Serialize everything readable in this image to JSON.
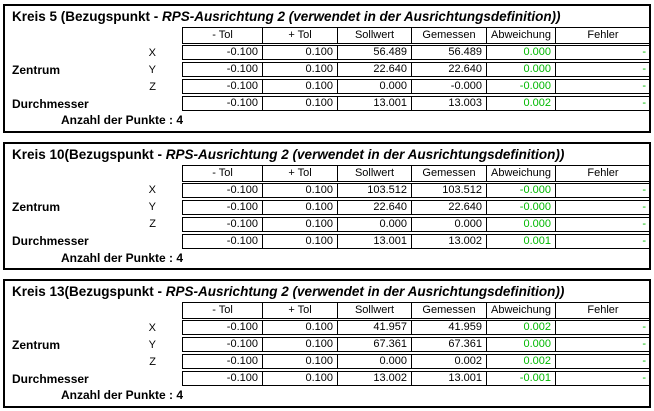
{
  "colors": {
    "deviation_green": "#00b800",
    "border": "#000000",
    "text": "#000000",
    "background": "#ffffff"
  },
  "table": {
    "headers": [
      "- Tol",
      "+ Tol",
      "Sollwert",
      "Gemessen",
      "Abweichung",
      "Fehler"
    ]
  },
  "labels": {
    "center": "Zentrum",
    "diameter": "Durchmesser"
  },
  "blocks": [
    {
      "name": "Kreis 5 ",
      "title_bold": "(Bezugspunkt - ",
      "title_italic": "RPS-Ausrichtung 2 (verwendet in der Ausrichtungsdefinition))",
      "points_text": "Anzahl der Punkte : 4",
      "rows": [
        {
          "axis": "X",
          "minus_tol": "-0.100",
          "plus_tol": "0.100",
          "nominal": "56.489",
          "measured": "56.489",
          "deviation": "0.000",
          "error": "-"
        },
        {
          "axis": "Y",
          "minus_tol": "-0.100",
          "plus_tol": "0.100",
          "nominal": "22.640",
          "measured": "22.640",
          "deviation": "0.000",
          "error": "-"
        },
        {
          "axis": "Z",
          "minus_tol": "-0.100",
          "plus_tol": "0.100",
          "nominal": "0.000",
          "measured": "-0.000",
          "deviation": "-0.000",
          "error": "-"
        },
        {
          "axis": "",
          "minus_tol": "-0.100",
          "plus_tol": "0.100",
          "nominal": "13.001",
          "measured": "13.003",
          "deviation": "0.002",
          "error": "-"
        }
      ]
    },
    {
      "name": "Kreis 10",
      "title_bold": "(Bezugspunkt - ",
      "title_italic": "RPS-Ausrichtung 2 (verwendet in der Ausrichtungsdefinition))",
      "points_text": "Anzahl der Punkte : 4",
      "rows": [
        {
          "axis": "X",
          "minus_tol": "-0.100",
          "plus_tol": "0.100",
          "nominal": "103.512",
          "measured": "103.512",
          "deviation": "-0.000",
          "error": "-"
        },
        {
          "axis": "Y",
          "minus_tol": "-0.100",
          "plus_tol": "0.100",
          "nominal": "22.640",
          "measured": "22.640",
          "deviation": "-0.000",
          "error": "-"
        },
        {
          "axis": "Z",
          "minus_tol": "-0.100",
          "plus_tol": "0.100",
          "nominal": "0.000",
          "measured": "0.000",
          "deviation": "0.000",
          "error": "-"
        },
        {
          "axis": "",
          "minus_tol": "-0.100",
          "plus_tol": "0.100",
          "nominal": "13.001",
          "measured": "13.002",
          "deviation": "0.001",
          "error": "-"
        }
      ]
    },
    {
      "name": "Kreis 13",
      "title_bold": "(Bezugspunkt - ",
      "title_italic": "RPS-Ausrichtung 2 (verwendet in der Ausrichtungsdefinition))",
      "points_text": "Anzahl der Punkte : 4",
      "rows": [
        {
          "axis": "X",
          "minus_tol": "-0.100",
          "plus_tol": "0.100",
          "nominal": "41.957",
          "measured": "41.959",
          "deviation": "0.002",
          "error": "-"
        },
        {
          "axis": "Y",
          "minus_tol": "-0.100",
          "plus_tol": "0.100",
          "nominal": "67.361",
          "measured": "67.361",
          "deviation": "0.000",
          "error": "-"
        },
        {
          "axis": "Z",
          "minus_tol": "-0.100",
          "plus_tol": "0.100",
          "nominal": "0.000",
          "measured": "0.002",
          "deviation": "0.002",
          "error": "-"
        },
        {
          "axis": "",
          "minus_tol": "-0.100",
          "plus_tol": "0.100",
          "nominal": "13.002",
          "measured": "13.001",
          "deviation": "-0.001",
          "error": "-"
        }
      ]
    }
  ]
}
